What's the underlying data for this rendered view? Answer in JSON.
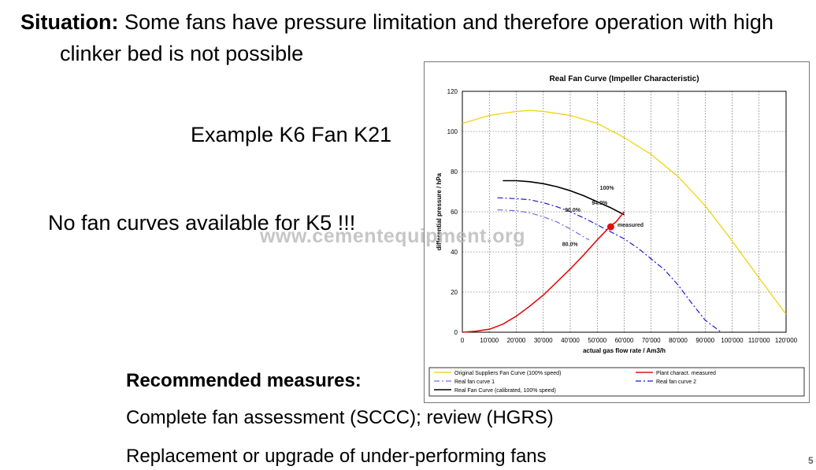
{
  "slide": {
    "situation_label": "Situation:",
    "situation_text_1": " Some fans have pressure limitation and therefore operation with high",
    "situation_text_2": "clinker bed is not possible",
    "example": "Example K6 Fan K21",
    "no_curves": "No fan curves available for K5 !!!",
    "recommended_title": "Recommended measures:",
    "measure_1": "Complete fan assessment (SCCC); review (HGRS)",
    "measure_2": "Replacement or upgrade of under-performing fans",
    "page_number": "5",
    "watermark": "www.cementequipment.org"
  },
  "chart_data": {
    "type": "line",
    "title": "Real Fan Curve (Impeller Characteristic)",
    "xlabel": "actual gas flow rate / Am3/h",
    "ylabel": "differential pressure / hPa",
    "xlim": [
      0,
      120000
    ],
    "ylim": [
      0,
      120
    ],
    "x_ticks": [
      0,
      10000,
      20000,
      30000,
      40000,
      50000,
      60000,
      70000,
      80000,
      90000,
      100000,
      110000,
      120000
    ],
    "x_tick_labels": [
      "0",
      "10'000",
      "20'000",
      "30'000",
      "40'000",
      "50'000",
      "60'000",
      "70'000",
      "80'000",
      "90'000",
      "100'000",
      "110'000",
      "120'000"
    ],
    "y_ticks": [
      0,
      20,
      40,
      60,
      80,
      100,
      120
    ],
    "y_tick_labels": [
      "0",
      "20",
      "40",
      "60",
      "80",
      "100",
      "120"
    ],
    "grid": true,
    "legend_position": "bottom",
    "series": [
      {
        "name": "Original Suppliers Fan Curve (100% speed)",
        "color": "#f0d000",
        "dash": "solid",
        "x": [
          0,
          10000,
          20000,
          25000,
          30000,
          40000,
          50000,
          60000,
          70000,
          80000,
          90000,
          100000,
          110000,
          120000
        ],
        "y": [
          104,
          108,
          110,
          110.5,
          110,
          108,
          104,
          97,
          88.5,
          77.5,
          63,
          45.5,
          27,
          9
        ]
      },
      {
        "name": "Plant charact. measured",
        "color": "#e01010",
        "dash": "solid",
        "x": [
          0,
          5000,
          10000,
          15000,
          20000,
          25000,
          30000,
          35000,
          40000,
          45000,
          50000,
          55000,
          57000,
          60000
        ],
        "y": [
          0,
          0.5,
          1.5,
          4,
          8,
          13,
          18.5,
          25,
          31.5,
          38.5,
          46,
          53,
          55,
          60
        ]
      },
      {
        "name": "Real fan curve 1",
        "color": "#7070e0",
        "dash": "dashdot",
        "x": [
          13000,
          20000,
          25000,
          30000,
          35000,
          40000,
          45000,
          47000
        ],
        "y": [
          61,
          60.5,
          59.5,
          57.5,
          55,
          51.5,
          47.5,
          46
        ]
      },
      {
        "name": "Real fan curve 2",
        "color": "#1a1ad0",
        "dash": "dashdot",
        "x": [
          13000,
          20000,
          25000,
          30000,
          35000,
          40000,
          45000,
          50000,
          55000,
          60000,
          65000,
          70000,
          75000,
          80000,
          85000,
          90000,
          96000
        ],
        "y": [
          67,
          66.5,
          66,
          64.5,
          62.5,
          60,
          57,
          53.5,
          50,
          46.5,
          42,
          36.5,
          31,
          23.5,
          14.5,
          6,
          0
        ]
      },
      {
        "name": "Real Fan Curve (calibrated, 100% speed)",
        "color": "#000000",
        "dash": "solid",
        "x": [
          15000,
          20000,
          25000,
          30000,
          35000,
          40000,
          45000,
          50000,
          55000,
          60000
        ],
        "y": [
          75.5,
          75.5,
          75,
          74,
          72.5,
          70.5,
          68,
          65,
          62,
          58.5
        ]
      }
    ],
    "annotations": [
      {
        "text": "100%",
        "x": 51000,
        "y": 71
      },
      {
        "text": "94.0%",
        "x": 48000,
        "y": 63.5
      },
      {
        "text": "90.0%",
        "x": 38000,
        "y": 60
      },
      {
        "text": "80.0%",
        "x": 37000,
        "y": 43
      },
      {
        "text": "measured",
        "x": 57500,
        "y": 52.5
      }
    ],
    "measured_point": {
      "x": 55000,
      "y": 52.5,
      "color": "#e01010"
    }
  }
}
